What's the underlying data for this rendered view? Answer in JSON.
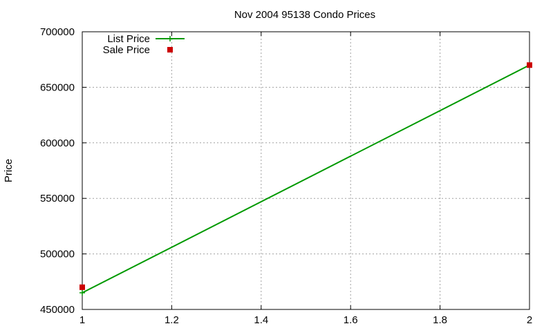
{
  "chart_data": {
    "type": "line",
    "title": "Nov 2004 95138 Condo Prices",
    "xlabel": "",
    "ylabel": "Price",
    "xlim": [
      1,
      2
    ],
    "ylim": [
      450000,
      700000
    ],
    "x_ticks": [
      "1",
      "1.2",
      "1.4",
      "1.6",
      "1.8",
      "2"
    ],
    "y_ticks": [
      "450000",
      "500000",
      "550000",
      "600000",
      "650000",
      "700000"
    ],
    "grid": true,
    "legend_position": "top-left",
    "series": [
      {
        "name": "List Price",
        "style": "linespoints",
        "marker": "plus",
        "color": "#009900",
        "points": [
          {
            "x": 1,
            "y": 465000
          },
          {
            "x": 2,
            "y": 670000
          }
        ]
      },
      {
        "name": "Sale Price",
        "style": "points",
        "marker": "square",
        "color": "#cc0000",
        "points": [
          {
            "x": 1,
            "y": 470000
          },
          {
            "x": 2,
            "y": 670000
          }
        ]
      }
    ]
  }
}
